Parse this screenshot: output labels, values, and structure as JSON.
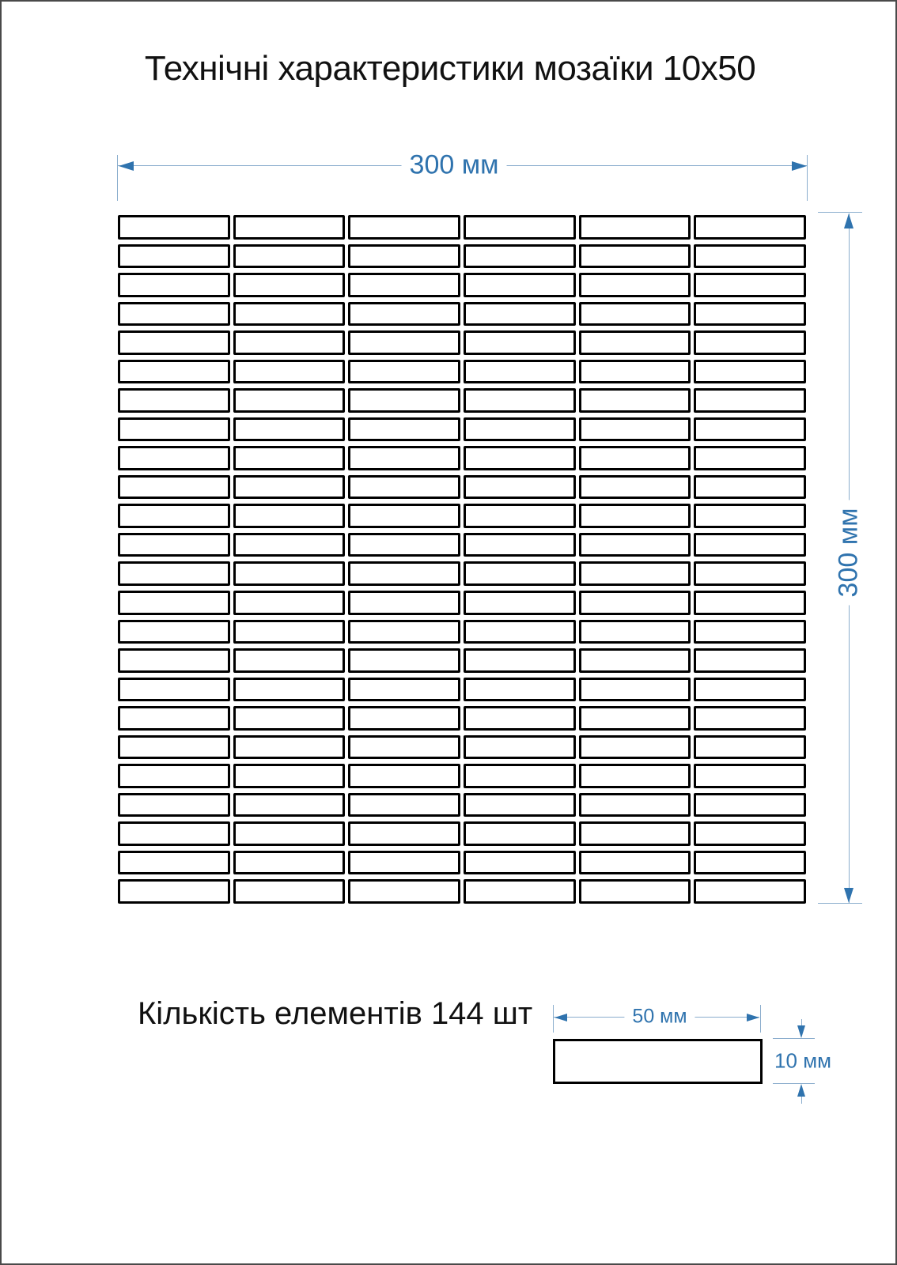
{
  "title": "Технічні характеристики мозаїки 10x50",
  "sheet": {
    "width_label": "300 мм",
    "height_label": "300 мм"
  },
  "grid": {
    "columns": 6,
    "rows": 24,
    "element_count": 144
  },
  "element": {
    "width_label": "50 мм",
    "height_label": "10 мм"
  },
  "summary": {
    "count_text": "Кількість елементів 144 шт"
  },
  "colors": {
    "dimension_blue": "#2f73ae",
    "dimension_line_blue": "#8aadcd",
    "tile_border": "#000000",
    "tile_fill": "#ffffff",
    "page_border": "#4a4a4a"
  }
}
